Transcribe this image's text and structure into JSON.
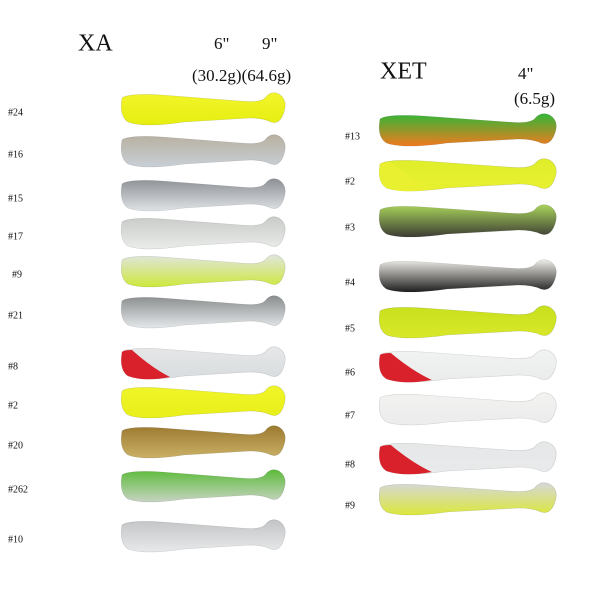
{
  "left": {
    "title": "XA",
    "size_a": "6\"",
    "size_b": "9\"",
    "weights": "(30.2g)(64.6g)",
    "items": [
      "#24",
      "#16",
      "#15",
      "#17",
      "#9",
      "#21",
      "#8",
      "#2",
      "#20",
      "#262",
      "#10"
    ]
  },
  "right": {
    "title": "XET",
    "size": "4\"",
    "weight": "(6.5g)",
    "items": [
      "#13",
      "#2",
      "#3",
      "#4",
      "#5",
      "#6",
      "#7",
      "#8",
      "#9"
    ]
  }
}
